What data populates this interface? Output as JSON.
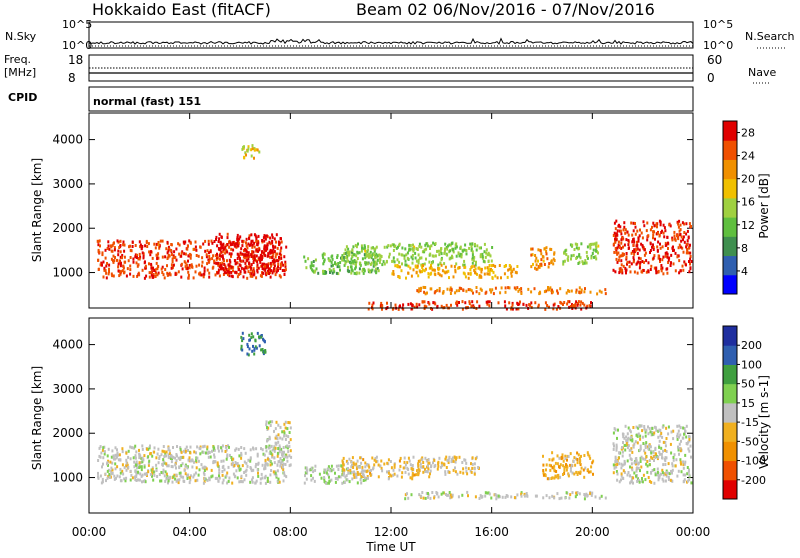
{
  "header": {
    "title_left": "Hokkaido East (fitACF)",
    "title_right": "Beam 02  06/Nov/2016 - 07/Nov/2016"
  },
  "nsky": {
    "label": "N.Sky",
    "left_ticks": [
      "10^5",
      "10^0"
    ],
    "right_ticks": [
      "10^5",
      "10^0"
    ],
    "right_label": "N.Search"
  },
  "freq": {
    "label_line1": "Freq.",
    "label_line2": "[MHz]",
    "left_ticks": [
      "18",
      "8"
    ],
    "right_ticks": [
      "60",
      "0"
    ],
    "right_label": "Nave"
  },
  "cpid": {
    "label": "CPID",
    "value": "normal (fast) 151"
  },
  "x_ticks": [
    "00:00",
    "04:00",
    "08:00",
    "12:00",
    "16:00",
    "20:00",
    "00:00"
  ],
  "x_title": "Time UT",
  "colors": {
    "power": [
      "#0000ff",
      "#2f5fb0",
      "#3f8f4f",
      "#5fbf3f",
      "#9fd040",
      "#f0c000",
      "#f09000",
      "#f05000",
      "#e00000"
    ],
    "velocity": [
      "#e00000",
      "#f05000",
      "#f09000",
      "#f0b020",
      "#c0c0c0",
      "#7fd050",
      "#3f9f3f",
      "#2f5fb0",
      "#1f2f9f"
    ]
  },
  "chart_data": [
    {
      "type": "heatmap",
      "panel": "power",
      "ylabel": "Slant Range [km]",
      "xlabel": "Time UT",
      "ylim": [
        200,
        4600
      ],
      "y_ticks": [
        1000,
        2000,
        3000,
        4000
      ],
      "x_range_hours": [
        0,
        24
      ],
      "colorbar": {
        "label": "Power [dB]",
        "ticks": [
          4,
          8,
          12,
          16,
          20,
          24,
          28
        ],
        "range": [
          0,
          30
        ]
      },
      "patches": [
        {
          "t0": 0.3,
          "t1": 7.8,
          "r0": 900,
          "r1": 1750,
          "value": 26
        },
        {
          "t0": 5.0,
          "t1": 7.6,
          "r0": 1000,
          "r1": 1900,
          "value": 29
        },
        {
          "t0": 8.5,
          "t1": 11.5,
          "r0": 1000,
          "r1": 1500,
          "value": 12
        },
        {
          "t0": 10.0,
          "t1": 16.0,
          "r0": 1200,
          "r1": 1700,
          "value": 14
        },
        {
          "t0": 12.0,
          "t1": 17.0,
          "r0": 900,
          "r1": 1200,
          "value": 20
        },
        {
          "t0": 13.0,
          "t1": 20.5,
          "r0": 550,
          "r1": 700,
          "value": 23
        },
        {
          "t0": 17.5,
          "t1": 18.5,
          "r0": 1100,
          "r1": 1600,
          "value": 22
        },
        {
          "t0": 18.8,
          "t1": 20.2,
          "r0": 1200,
          "r1": 1700,
          "value": 14
        },
        {
          "t0": 20.8,
          "t1": 23.9,
          "r0": 1000,
          "r1": 2200,
          "value": 27
        },
        {
          "t0": 11.0,
          "t1": 20.0,
          "r0": 200,
          "r1": 380,
          "value": 26
        },
        {
          "t0": 6.0,
          "t1": 6.8,
          "r0": 3600,
          "r1": 3900,
          "value": 18
        }
      ]
    },
    {
      "type": "heatmap",
      "panel": "velocity",
      "ylabel": "Slant Range [km]",
      "xlabel": "Time UT",
      "ylim": [
        200,
        4600
      ],
      "y_ticks": [
        1000,
        2000,
        3000,
        4000
      ],
      "x_range_hours": [
        0,
        24
      ],
      "colorbar": {
        "label": "Velocity [m s-1]",
        "ticks": [
          200,
          100,
          50,
          15,
          -15,
          -50,
          -100,
          -200
        ],
        "range": [
          -250,
          250
        ]
      },
      "patches": [
        {
          "t0": 0.3,
          "t1": 7.8,
          "r0": 900,
          "r1": 1750,
          "value": 0
        },
        {
          "t0": 7.0,
          "t1": 8.0,
          "r0": 1300,
          "r1": 2300,
          "value": 0
        },
        {
          "t0": 8.5,
          "t1": 11.0,
          "r0": 900,
          "r1": 1300,
          "value": 30
        },
        {
          "t0": 10.0,
          "t1": 13.5,
          "r0": 1000,
          "r1": 1500,
          "value": -40
        },
        {
          "t0": 13.0,
          "t1": 15.5,
          "r0": 1100,
          "r1": 1500,
          "value": -35
        },
        {
          "t0": 12.5,
          "t1": 20.5,
          "r0": 550,
          "r1": 700,
          "value": 0
        },
        {
          "t0": 18.0,
          "t1": 20.0,
          "r0": 1000,
          "r1": 1600,
          "value": -60
        },
        {
          "t0": 20.8,
          "t1": 23.9,
          "r0": 900,
          "r1": 2200,
          "value": 0
        },
        {
          "t0": 6.0,
          "t1": 7.0,
          "r0": 3800,
          "r1": 4300,
          "value": 150
        }
      ]
    }
  ]
}
